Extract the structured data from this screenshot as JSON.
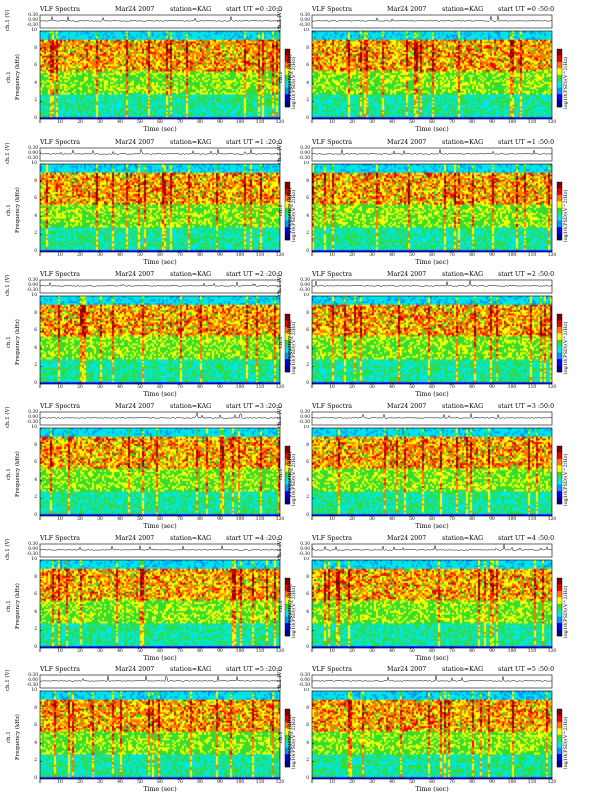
{
  "colors": {
    "scale": [
      "#00007f",
      "#0000ff",
      "#0096ff",
      "#00e5e5",
      "#33dd33",
      "#ffff00",
      "#ff7700",
      "#e60000",
      "#7f0000"
    ],
    "background": "#ffffff",
    "trace": "#000000"
  },
  "chart_data": [
    {
      "type": "heatmap",
      "title": "VLF Spectra",
      "date": "Mar24 2007",
      "station": "station=KAG",
      "start": "start UT =0 :20:0",
      "trace_label": "ch.1 (V)",
      "trace_ticks": [
        "0.30",
        "0.00",
        "-0.30"
      ],
      "ylabel": "Frequency (kHz)",
      "channel": "ch.1",
      "xlabel": "Time (sec)",
      "x_ticks": [
        "0",
        "10",
        "20",
        "30",
        "40",
        "50",
        "60",
        "70",
        "80",
        "90",
        "100",
        "110",
        "120"
      ],
      "y_ticks": [
        "0",
        "2",
        "4",
        "6",
        "8",
        "10"
      ],
      "xlim": [
        0,
        120
      ],
      "ylim": [
        0,
        10
      ],
      "colorbar_label": "log10(PSD)(V^2/Hz)"
    },
    {
      "type": "heatmap",
      "title": "VLF Spectra",
      "date": "Mar24 2007",
      "station": "station=KAG",
      "start": "start UT =0 :50:0",
      "trace_label": "ch.1 (V)",
      "trace_ticks": [
        "0.30",
        "0.00",
        "-0.30"
      ],
      "ylabel": "Frequency (kHz)",
      "channel": "ch.1",
      "xlabel": "Time (sec)",
      "x_ticks": [
        "0",
        "10",
        "20",
        "30",
        "40",
        "50",
        "60",
        "70",
        "80",
        "90",
        "100",
        "110",
        "120"
      ],
      "y_ticks": [
        "0",
        "2",
        "4",
        "6",
        "8",
        "10"
      ],
      "xlim": [
        0,
        120
      ],
      "ylim": [
        0,
        10
      ],
      "colorbar_label": "log10(PSD)(V^2/Hz)"
    },
    {
      "type": "heatmap",
      "title": "VLF Spectra",
      "date": "Mar24 2007",
      "station": "station=KAG",
      "start": "start UT =1 :20:0",
      "trace_label": "ch.1 (V)",
      "trace_ticks": [
        "0.30",
        "0.00",
        "-0.30"
      ],
      "ylabel": "Frequency (kHz)",
      "channel": "ch.1",
      "xlabel": "Time (sec)",
      "x_ticks": [
        "0",
        "10",
        "20",
        "30",
        "40",
        "50",
        "60",
        "70",
        "80",
        "90",
        "100",
        "110",
        "120"
      ],
      "y_ticks": [
        "0",
        "2",
        "4",
        "6",
        "8",
        "10"
      ],
      "xlim": [
        0,
        120
      ],
      "ylim": [
        0,
        10
      ],
      "colorbar_label": "log10(PSD)(V^2/Hz)"
    },
    {
      "type": "heatmap",
      "title": "VLF Spectra",
      "date": "Mar24 2007",
      "station": "station=KAG",
      "start": "start UT =1 :50:0",
      "trace_label": "ch.1 (V)",
      "trace_ticks": [
        "0.30",
        "0.00",
        "-0.30"
      ],
      "ylabel": "Frequency (kHz)",
      "channel": "ch.1",
      "xlabel": "Time (sec)",
      "x_ticks": [
        "0",
        "10",
        "20",
        "30",
        "40",
        "50",
        "60",
        "70",
        "80",
        "90",
        "100",
        "110",
        "120"
      ],
      "y_ticks": [
        "0",
        "2",
        "4",
        "6",
        "8",
        "10"
      ],
      "xlim": [
        0,
        120
      ],
      "ylim": [
        0,
        10
      ],
      "colorbar_label": "log10(PSD)(V^2/Hz)"
    },
    {
      "type": "heatmap",
      "title": "VLF Spectra",
      "date": "Mar24 2007",
      "station": "station=KAG",
      "start": "start UT =2 :20:0",
      "trace_label": "ch.1 (V)",
      "trace_ticks": [
        "0.30",
        "0.00",
        "-0.30"
      ],
      "ylabel": "Frequency (kHz)",
      "channel": "ch.1",
      "xlabel": "Time (sec)",
      "x_ticks": [
        "0",
        "10",
        "20",
        "30",
        "40",
        "50",
        "60",
        "70",
        "80",
        "90",
        "100",
        "110",
        "120"
      ],
      "y_ticks": [
        "0",
        "2",
        "4",
        "6",
        "8",
        "10"
      ],
      "xlim": [
        0,
        120
      ],
      "ylim": [
        0,
        10
      ],
      "colorbar_label": "log10(PSD)(V^2/Hz)"
    },
    {
      "type": "heatmap",
      "title": "VLF Spectra",
      "date": "Mar24 2007",
      "station": "station=KAG",
      "start": "start UT =2 :50:0",
      "trace_label": "ch.1 (V)",
      "trace_ticks": [
        "0.30",
        "0.00",
        "-0.30"
      ],
      "ylabel": "Frequency (kHz)",
      "channel": "ch.1",
      "xlabel": "Time (sec)",
      "x_ticks": [
        "0",
        "10",
        "20",
        "30",
        "40",
        "50",
        "60",
        "70",
        "80",
        "90",
        "100",
        "110",
        "120"
      ],
      "y_ticks": [
        "0",
        "2",
        "4",
        "6",
        "8",
        "10"
      ],
      "xlim": [
        0,
        120
      ],
      "ylim": [
        0,
        10
      ],
      "colorbar_label": "log10(PSD)(V^2/Hz)"
    },
    {
      "type": "heatmap",
      "title": "VLF Spectra",
      "date": "Mar24 2007",
      "station": "station=KAG",
      "start": "start UT =3 :20:0",
      "trace_label": "ch.1 (V)",
      "trace_ticks": [
        "0.30",
        "0.00",
        "-0.30"
      ],
      "ylabel": "Frequency (kHz)",
      "channel": "ch.1",
      "xlabel": "Time (sec)",
      "x_ticks": [
        "0",
        "10",
        "20",
        "30",
        "40",
        "50",
        "60",
        "70",
        "80",
        "90",
        "100",
        "110",
        "120"
      ],
      "y_ticks": [
        "0",
        "2",
        "4",
        "6",
        "8",
        "10"
      ],
      "xlim": [
        0,
        120
      ],
      "ylim": [
        0,
        10
      ],
      "colorbar_label": "log10(PSD)(V^2/Hz)"
    },
    {
      "type": "heatmap",
      "title": "VLF Spectra",
      "date": "Mar24 2007",
      "station": "station=KAG",
      "start": "start UT =3 :50:0",
      "trace_label": "ch.1 (V)",
      "trace_ticks": [
        "0.30",
        "0.00",
        "-0.30"
      ],
      "ylabel": "Frequency (kHz)",
      "channel": "ch.1",
      "xlabel": "Time (sec)",
      "x_ticks": [
        "0",
        "10",
        "20",
        "30",
        "40",
        "50",
        "60",
        "70",
        "80",
        "90",
        "100",
        "110",
        "120"
      ],
      "y_ticks": [
        "0",
        "2",
        "4",
        "6",
        "8",
        "10"
      ],
      "xlim": [
        0,
        120
      ],
      "ylim": [
        0,
        10
      ],
      "colorbar_label": "log10(PSD)(V^2/Hz)"
    },
    {
      "type": "heatmap",
      "title": "VLF Spectra",
      "date": "Mar24 2007",
      "station": "station=KAG",
      "start": "start UT =4 :20:0",
      "trace_label": "ch.1 (V)",
      "trace_ticks": [
        "0.30",
        "0.00",
        "-0.30"
      ],
      "ylabel": "Frequency (kHz)",
      "channel": "ch.1",
      "xlabel": "Time (sec)",
      "x_ticks": [
        "0",
        "10",
        "20",
        "30",
        "40",
        "50",
        "60",
        "70",
        "80",
        "90",
        "100",
        "110",
        "120"
      ],
      "y_ticks": [
        "0",
        "2",
        "4",
        "6",
        "8",
        "10"
      ],
      "xlim": [
        0,
        120
      ],
      "ylim": [
        0,
        10
      ],
      "colorbar_label": "log10(PSD)(V^2/Hz)"
    },
    {
      "type": "heatmap",
      "title": "VLF Spectra",
      "date": "Mar24 2007",
      "station": "station=KAG",
      "start": "start UT =4 :50:0",
      "trace_label": "ch.1 (V)",
      "trace_ticks": [
        "0.30",
        "0.00",
        "-0.30"
      ],
      "ylabel": "Frequency (kHz)",
      "channel": "ch.1",
      "xlabel": "Time (sec)",
      "x_ticks": [
        "0",
        "10",
        "20",
        "30",
        "40",
        "50",
        "60",
        "70",
        "80",
        "90",
        "100",
        "110",
        "120"
      ],
      "y_ticks": [
        "0",
        "2",
        "4",
        "6",
        "8",
        "10"
      ],
      "xlim": [
        0,
        120
      ],
      "ylim": [
        0,
        10
      ],
      "colorbar_label": "log10(PSD)(V^2/Hz)"
    },
    {
      "type": "heatmap",
      "title": "VLF Spectra",
      "date": "Mar24 2007",
      "station": "station=KAG",
      "start": "start UT =5 :20:0",
      "trace_label": "ch.1 (V)",
      "trace_ticks": [
        "0.30",
        "0.00",
        "-0.30"
      ],
      "ylabel": "Frequency (kHz)",
      "channel": "ch.1",
      "xlabel": "Time (sec)",
      "x_ticks": [
        "0",
        "10",
        "20",
        "30",
        "40",
        "50",
        "60",
        "70",
        "80",
        "90",
        "100",
        "110",
        "120"
      ],
      "y_ticks": [
        "0",
        "2",
        "4",
        "6",
        "8",
        "10"
      ],
      "xlim": [
        0,
        120
      ],
      "ylim": [
        0,
        10
      ],
      "colorbar_label": "log10(PSD)(V^2/Hz)"
    },
    {
      "type": "heatmap",
      "title": "VLF Spectra",
      "date": "Mar24 2007",
      "station": "station=KAG",
      "start": "start UT =5 :50:0",
      "trace_label": "ch.1 (V)",
      "trace_ticks": [
        "0.30",
        "0.00",
        "-0.30"
      ],
      "ylabel": "Frequency (kHz)",
      "channel": "ch.1",
      "xlabel": "Time (sec)",
      "x_ticks": [
        "0",
        "10",
        "20",
        "30",
        "40",
        "50",
        "60",
        "70",
        "80",
        "90",
        "100",
        "110",
        "120"
      ],
      "y_ticks": [
        "0",
        "2",
        "4",
        "6",
        "8",
        "10"
      ],
      "xlim": [
        0,
        120
      ],
      "ylim": [
        0,
        10
      ],
      "colorbar_label": "log10(PSD)(V^2/Hz)"
    }
  ]
}
